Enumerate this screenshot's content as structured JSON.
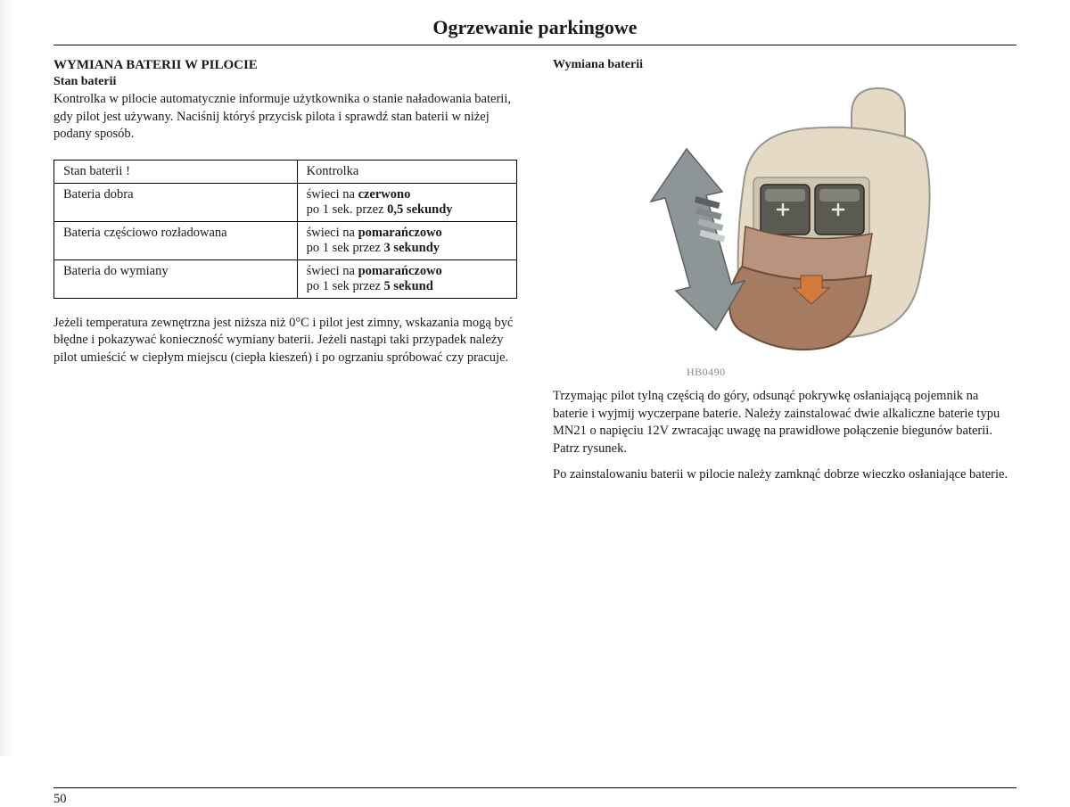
{
  "page_title": "Ogrzewanie parkingowe",
  "left": {
    "heading": "WYMIANA BATERII W PILOCIE",
    "subheading": "Stan baterii",
    "intro": "Kontrolka w pilocie automatycznie informuje użytkownika o stanie naładowania baterii, gdy pilot jest używany. Naciśnij któryś przycisk pilota i sprawdź stan baterii w niżej podany sposób.",
    "table": {
      "header": {
        "col1": "Stan baterii !",
        "col2": "Kontrolka"
      },
      "rows": [
        {
          "state": "Bateria dobra",
          "line1_pre": "świeci na ",
          "line1_bold": "czerwono",
          "line2_pre": "po 1 sek. przez ",
          "line2_bold": "0,5 sekundy"
        },
        {
          "state": "Bateria częściowo rozładowana",
          "line1_pre": "świeci na ",
          "line1_bold": "pomarańczowo",
          "line2_pre": "po 1 sek przez ",
          "line2_bold": "3 sekundy"
        },
        {
          "state": "Bateria do wymiany",
          "line1_pre": "świeci na ",
          "line1_bold": "pomarańczowo",
          "line2_pre": "po 1 sek przez ",
          "line2_bold": "5 sekund"
        }
      ]
    },
    "note": "Jeżeli temperatura zewnętrzna jest niższa niż 0°C i pilot jest zimny, wskazania mogą być błędne i pokazywać konieczność wymiany baterii. Jeżeli nastąpi taki przypadek należy pilot umieścić w ciepłym miejscu (ciepła kieszeń) i po ogrzaniu spróbować czy pracuje."
  },
  "right": {
    "heading": "Wymiana baterii",
    "figure_caption": "HB0490",
    "para1": "Trzymając pilot tylną częścią do góry, odsunąć pokrywkę osłaniającą pojemnik na baterie i wyjmij wyczerpane baterie. Należy zainstalować dwie alkaliczne baterie typu MN21 o napięciu 12V zwracając uwagę na prawidłowe połączenie biegunów baterii. Patrz rysunek.",
    "para2": "Po zainstalowaniu baterii w pilocie należy zamknąć dobrze wieczko osłaniające baterie."
  },
  "page_number": "50",
  "figure": {
    "body_fill": "#e5dac5",
    "body_stroke": "#9a968d",
    "cover_fill": "#a57c62",
    "cover_stroke": "#6f4d37",
    "cover_fill_light": "#b8947e",
    "battery_fill": "#5a5a52",
    "battery_highlight": "#82827a",
    "battery_stroke": "#2b2b26",
    "arrow_fill": "#8d9597",
    "arrow_stroke": "#5b6163",
    "stripes": [
      "#5b6062",
      "#82888a",
      "#a8adaf",
      "#c9cdcf"
    ],
    "down_arrow_fill": "#d27b3c"
  }
}
